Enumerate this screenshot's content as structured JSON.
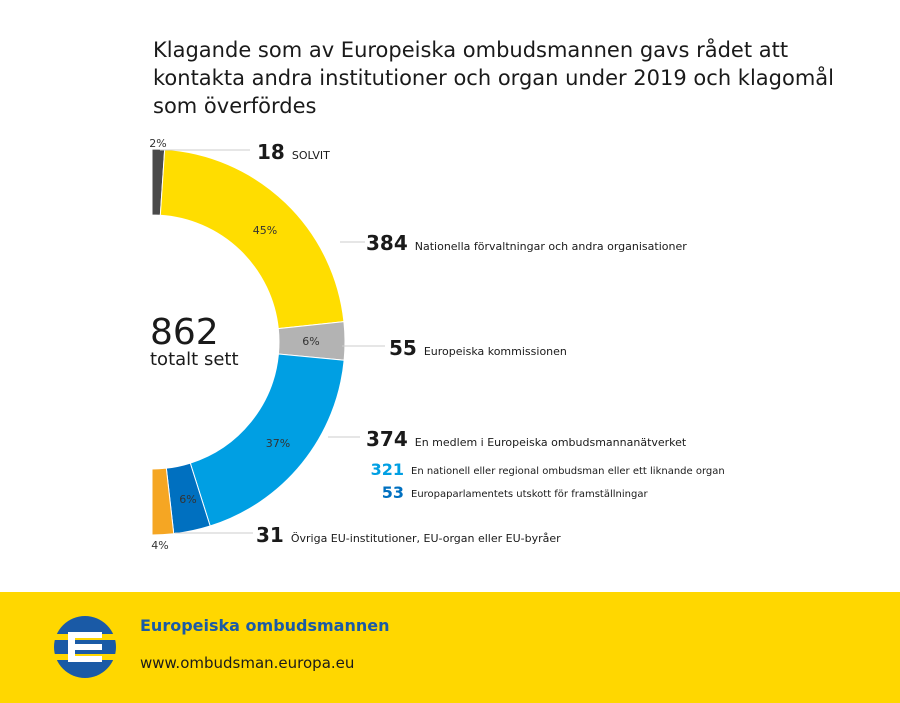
{
  "title": "Klagande som av Europeiska ombudsmannen gavs rådet att kontakta andra institutioner och organ under 2019 och klagomål som överfördes",
  "total": {
    "value": "862",
    "label": "totalt sett"
  },
  "chart_data": {
    "type": "pie",
    "title": "Klagande som av Europeiska ombudsmannen gavs rådet att kontakta andra institutioner och organ under 2019 och klagomål som överfördes",
    "slices": [
      {
        "id": "solvit",
        "pct_label": "2%",
        "value": 18,
        "label": "SOLVIT",
        "color": "#4a4a4a"
      },
      {
        "id": "national-admin",
        "pct_label": "45%",
        "value": 384,
        "label": "Nationella förvaltningar och andra organisationer",
        "color": "#ffdd00"
      },
      {
        "id": "commission",
        "pct_label": "6%",
        "value": 55,
        "label": "Europeiska kommissionen",
        "color": "#b3b3b3"
      },
      {
        "id": "network-national",
        "pct_label": "37%",
        "value": 321,
        "label": "En nationell eller regional ombudsman eller ett liknande organ",
        "color": "#009fe3"
      },
      {
        "id": "network-petitions",
        "pct_label": "6%",
        "value": 53,
        "label": "Europaparlamentets utskott för framställningar",
        "color": "#0070c0"
      },
      {
        "id": "other-eu",
        "pct_label": "4%",
        "value": 31,
        "label": "Övriga EU-institutioner, EU-organ eller EU-byråer",
        "color": "#f5a623"
      }
    ],
    "group": {
      "value": 374,
      "label": "En medlem i Europeiska ombudsmannanätverket"
    },
    "sub_items": [
      {
        "value": 321,
        "label": "En nationell eller regional ombudsman eller ett liknande organ",
        "color": "#009fe3"
      },
      {
        "value": 53,
        "label": "Europaparlamentets utskott för framställningar",
        "color": "#0070c0"
      }
    ],
    "callouts": [
      {
        "value": 18,
        "label": "SOLVIT"
      },
      {
        "value": 384,
        "label": "Nationella förvaltningar och andra organisationer"
      },
      {
        "value": 55,
        "label": "Europeiska kommissionen"
      },
      {
        "value": 374,
        "label": "En medlem i Europeiska ombudsmannanätverket"
      },
      {
        "value": 31,
        "label": "Övriga EU-institutioner, EU-organ eller EU-byråer"
      }
    ]
  },
  "footer": {
    "organization": "Europeiska ombudsmannen",
    "url": "www.ombudsman.europa.eu",
    "logo_icon": "european-ombudsman-logo-icon"
  },
  "colors": {
    "footer_bg": "#ffd700",
    "brand_blue": "#1a5aa6"
  }
}
